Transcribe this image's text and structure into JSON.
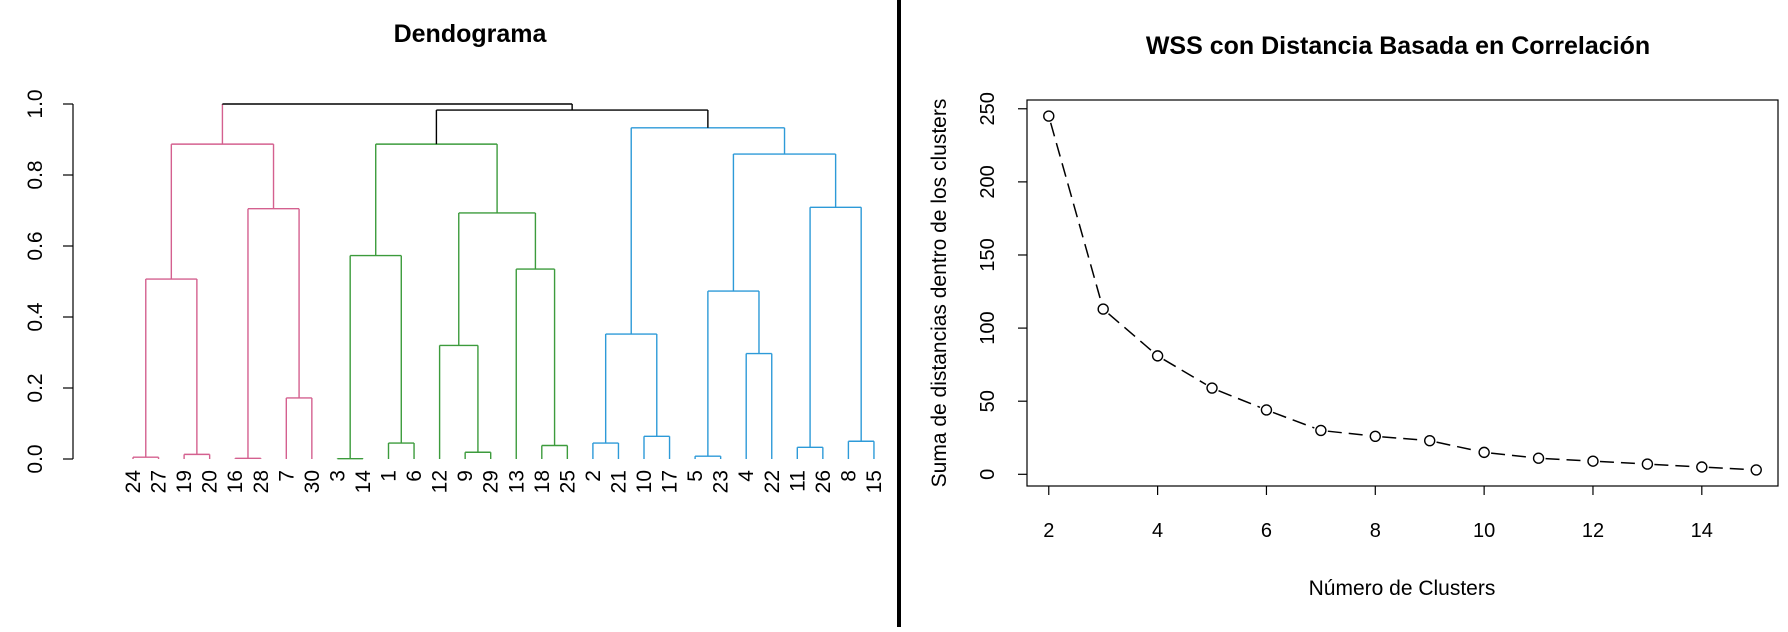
{
  "chart_data": [
    {
      "type": "dendrogram",
      "title": "Dendograma",
      "ylim": [
        0,
        1.0
      ],
      "yticks": [
        0.0,
        0.2,
        0.4,
        0.6,
        0.8,
        1.0
      ],
      "ytick_labels": [
        "0.0",
        "0.2",
        "0.4",
        "0.6",
        "0.8",
        "1.0"
      ],
      "leaves": [
        "24",
        "27",
        "19",
        "20",
        "16",
        "28",
        "7",
        "30",
        "3",
        "14",
        "1",
        "6",
        "12",
        "9",
        "29",
        "13",
        "18",
        "25",
        "2",
        "21",
        "10",
        "17",
        "5",
        "23",
        "4",
        "22",
        "11",
        "26",
        "8",
        "15"
      ],
      "cluster_colors": [
        "#d4608f",
        "#3c9b3c",
        "#2d9ad8"
      ],
      "root_color": "#000000",
      "tree": {
        "h": 1.0,
        "children": [
          {
            "h": 0.999,
            "color": 0,
            "children": [
              {
                "h": 0.887,
                "color": 0,
                "children": [
                  {
                    "h": 0.507,
                    "color": 0,
                    "children": [
                      {
                        "h": 0.005,
                        "color": 0,
                        "children": [
                          {
                            "leaf": 0
                          },
                          {
                            "leaf": 1
                          }
                        ]
                      },
                      {
                        "h": 0.013,
                        "color": 0,
                        "children": [
                          {
                            "leaf": 2
                          },
                          {
                            "leaf": 3
                          }
                        ]
                      }
                    ]
                  },
                  {
                    "h": 0.705,
                    "color": 0,
                    "children": [
                      {
                        "h": 0.002,
                        "color": 0,
                        "children": [
                          {
                            "leaf": 4
                          },
                          {
                            "leaf": 5
                          }
                        ]
                      },
                      {
                        "h": 0.172,
                        "color": 0,
                        "children": [
                          {
                            "leaf": 6
                          },
                          {
                            "leaf": 7
                          }
                        ]
                      }
                    ]
                  }
                ]
              }
            ]
          },
          {
            "h": 0.983,
            "color": null,
            "children": [
              {
                "h": 0.887,
                "color": 1,
                "children": [
                  {
                    "h": 0.573,
                    "color": 1,
                    "children": [
                      {
                        "h": 0.001,
                        "color": 1,
                        "children": [
                          {
                            "leaf": 8
                          },
                          {
                            "leaf": 9
                          }
                        ]
                      },
                      {
                        "h": 0.045,
                        "color": 1,
                        "children": [
                          {
                            "leaf": 10
                          },
                          {
                            "leaf": 11
                          }
                        ]
                      }
                    ]
                  },
                  {
                    "h": 0.693,
                    "color": 1,
                    "children": [
                      {
                        "h": 0.32,
                        "color": 1,
                        "children": [
                          {
                            "leaf": 12
                          },
                          {
                            "h": 0.019,
                            "color": 1,
                            "children": [
                              {
                                "leaf": 13
                              },
                              {
                                "leaf": 14
                              }
                            ]
                          }
                        ]
                      },
                      {
                        "h": 0.535,
                        "color": 1,
                        "children": [
                          {
                            "leaf": 15
                          },
                          {
                            "h": 0.038,
                            "color": 1,
                            "children": [
                              {
                                "leaf": 16
                              },
                              {
                                "leaf": 17
                              }
                            ]
                          }
                        ]
                      }
                    ]
                  }
                ]
              },
              {
                "h": 0.933,
                "color": 2,
                "children": [
                  {
                    "h": 0.352,
                    "color": 2,
                    "children": [
                      {
                        "h": 0.045,
                        "color": 2,
                        "children": [
                          {
                            "leaf": 18
                          },
                          {
                            "leaf": 19
                          }
                        ]
                      },
                      {
                        "h": 0.064,
                        "color": 2,
                        "children": [
                          {
                            "leaf": 20
                          },
                          {
                            "leaf": 21
                          }
                        ]
                      }
                    ]
                  },
                  {
                    "h": 0.859,
                    "color": 2,
                    "children": [
                      {
                        "h": 0.473,
                        "color": 2,
                        "children": [
                          {
                            "h": 0.008,
                            "color": 2,
                            "children": [
                              {
                                "leaf": 22
                              },
                              {
                                "leaf": 23
                              }
                            ]
                          },
                          {
                            "h": 0.297,
                            "color": 2,
                            "children": [
                              {
                                "leaf": 24
                              },
                              {
                                "leaf": 25
                              }
                            ]
                          }
                        ]
                      },
                      {
                        "h": 0.709,
                        "color": 2,
                        "children": [
                          {
                            "h": 0.033,
                            "color": 2,
                            "children": [
                              {
                                "leaf": 26
                              },
                              {
                                "leaf": 27
                              }
                            ]
                          },
                          {
                            "h": 0.05,
                            "color": 2,
                            "children": [
                              {
                                "leaf": 28
                              },
                              {
                                "leaf": 29
                              }
                            ]
                          }
                        ]
                      }
                    ]
                  }
                ]
              }
            ]
          }
        ]
      }
    },
    {
      "type": "line",
      "title": "WSS con Distancia Basada en Correlación",
      "xlabel": "Número de Clusters",
      "ylabel": "Suma de distancias dentro de los clusters",
      "x": [
        2,
        3,
        4,
        5,
        6,
        7,
        8,
        9,
        10,
        11,
        12,
        13,
        14,
        15
      ],
      "y": [
        245,
        113,
        81,
        59,
        44,
        30,
        26,
        23,
        15,
        11,
        9,
        7,
        5,
        3
      ],
      "xlim": [
        1.6,
        15.4
      ],
      "ylim": [
        -8,
        256
      ],
      "xticks": [
        2,
        4,
        6,
        8,
        10,
        12,
        14
      ],
      "yticks": [
        0,
        50,
        100,
        150,
        200,
        250
      ],
      "line_style": "dashed",
      "marker": "open-circle",
      "line_color": "#000000"
    }
  ]
}
